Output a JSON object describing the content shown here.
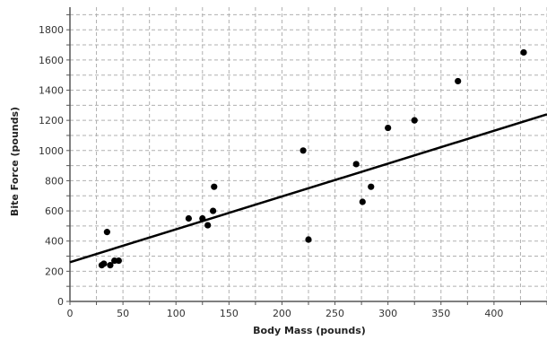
{
  "chart_data": {
    "type": "scatter",
    "title": "",
    "xlabel": "Body Mass (pounds)",
    "ylabel": "Bite Force (pounds)",
    "xlim": [
      0,
      450
    ],
    "ylim": [
      0,
      1950
    ],
    "xticks": [
      0,
      50,
      100,
      150,
      200,
      250,
      300,
      350,
      400
    ],
    "yticks": [
      0,
      200,
      400,
      600,
      800,
      1000,
      1200,
      1400,
      1600,
      1800
    ],
    "grid": true,
    "series": [
      {
        "points": [
          {
            "x": 30,
            "y": 240
          },
          {
            "x": 32,
            "y": 250
          },
          {
            "x": 35,
            "y": 460
          },
          {
            "x": 38,
            "y": 240
          },
          {
            "x": 42,
            "y": 270
          },
          {
            "x": 46,
            "y": 270
          },
          {
            "x": 112,
            "y": 550
          },
          {
            "x": 125,
            "y": 550
          },
          {
            "x": 130,
            "y": 505
          },
          {
            "x": 135,
            "y": 600
          },
          {
            "x": 136,
            "y": 760
          },
          {
            "x": 220,
            "y": 1000
          },
          {
            "x": 225,
            "y": 410
          },
          {
            "x": 270,
            "y": 910
          },
          {
            "x": 276,
            "y": 660
          },
          {
            "x": 284,
            "y": 760
          },
          {
            "x": 300,
            "y": 1150
          },
          {
            "x": 325,
            "y": 1200
          },
          {
            "x": 366,
            "y": 1460
          },
          {
            "x": 428,
            "y": 1650
          }
        ]
      }
    ],
    "trendline": {
      "x": [
        0,
        450
      ],
      "y": [
        260,
        1240
      ]
    },
    "colors": {
      "points": "#000000",
      "trendline": "#000000",
      "grid": "#b0b0b0",
      "axis": "#555555"
    }
  }
}
